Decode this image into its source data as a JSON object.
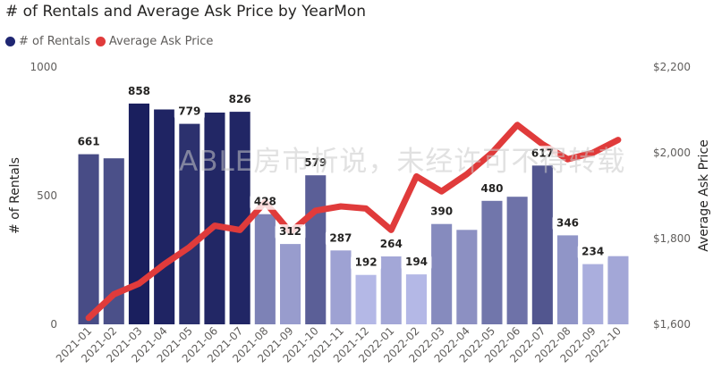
{
  "chart_data": {
    "type": "bar+line",
    "title": "# of Rentals and Average Ask Price by YearMon",
    "categories": [
      "2021-01",
      "2021-02",
      "2021-03",
      "2021-04",
      "2021-05",
      "2021-06",
      "2021-07",
      "2021-08",
      "2021-09",
      "2021-10",
      "2021-11",
      "2021-12",
      "2022-01",
      "2022-02",
      "2022-03",
      "2022-04",
      "2022-05",
      "2022-06",
      "2022-07",
      "2022-08",
      "2022-09",
      "2022-10"
    ],
    "series": [
      {
        "name": "# of Rentals",
        "type": "bar",
        "axis": "left",
        "values": [
          661,
          645,
          858,
          835,
          779,
          823,
          826,
          428,
          312,
          579,
          287,
          192,
          264,
          194,
          390,
          367,
          480,
          496,
          617,
          346,
          234,
          265
        ]
      },
      {
        "name": "Average Ask Price",
        "type": "line",
        "axis": "right",
        "color": "#e03b3b",
        "values": [
          1615,
          1670,
          1695,
          1740,
          1780,
          1830,
          1820,
          1885,
          1815,
          1865,
          1875,
          1870,
          1820,
          1945,
          1910,
          1950,
          2000,
          2065,
          2020,
          1985,
          2000,
          2030
        ]
      }
    ],
    "bar_labels": {
      "0": "661",
      "2": "858",
      "4": "779",
      "6": "826",
      "7": "428",
      "8": "312",
      "9": "579",
      "10": "287",
      "11": "192",
      "12": "264",
      "13": "194",
      "14": "390",
      "16": "480",
      "18": "617",
      "19": "346",
      "20": "234"
    },
    "ylabel": "# of Rentals",
    "y2label": "Average Ask Price",
    "ylim": [
      0,
      1000
    ],
    "y2lim": [
      1600,
      2200
    ],
    "yticks": [
      "0",
      "500",
      "1000"
    ],
    "y2ticks": [
      "$1,600",
      "$1,800",
      "$2,000",
      "$2,200"
    ],
    "legend_position": "top-left",
    "grid": false
  },
  "watermark": "ABLE房市析说，未经许可不得转载",
  "colors": {
    "bar_dark": "#1a1f5e",
    "bar_light": "#b4b8e6",
    "line": "#e03b3b"
  }
}
